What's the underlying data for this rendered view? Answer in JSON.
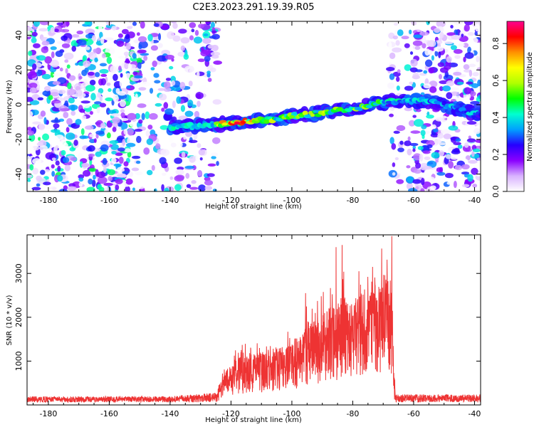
{
  "title": "C2E3.2023.291.19.39.R05",
  "chart_data": [
    {
      "type": "heatmap",
      "xlabel": "Height of straight line (km)",
      "ylabel": "Frequency (Hz)",
      "xlim": [
        -187,
        -38
      ],
      "ylim": [
        -50,
        48
      ],
      "xticks": [
        -180,
        -160,
        -140,
        -120,
        -100,
        -80,
        -60,
        -40
      ],
      "yticks": [
        -40,
        -20,
        0,
        20,
        40
      ],
      "gap_ranges_km": [
        [
          -124,
          -68
        ]
      ],
      "signal_track": {
        "description_points": [
          {
            "x": -140,
            "y": -13
          },
          {
            "x": -120,
            "y": -11
          },
          {
            "x": -100,
            "y": -7
          },
          {
            "x": -80,
            "y": -2
          },
          {
            "x": -68,
            "y": 2
          },
          {
            "x": -55,
            "y": 2
          },
          {
            "x": -40,
            "y": -5
          }
        ]
      },
      "colorbar": {
        "label": "Normalized spectral amplitude",
        "range": [
          0,
          0.92
        ],
        "ticks": [
          "0.0",
          "0.2",
          "0.4",
          "0.6",
          "0.8"
        ],
        "tick_values": [
          0.0,
          0.2,
          0.4,
          0.6,
          0.8
        ],
        "colors": [
          "#ffffff",
          "#d9b3ff",
          "#8a00ff",
          "#2600ff",
          "#00a0ff",
          "#00ffd0",
          "#00ff00",
          "#b0ff00",
          "#ffff00",
          "#ff9000",
          "#ff0000",
          "#ff0090"
        ]
      }
    },
    {
      "type": "line",
      "xlabel": "Height of straight line (km)",
      "ylabel": "SNR (10 * v/v)",
      "xlim": [
        -187,
        -38
      ],
      "ylim": [
        0,
        3880
      ],
      "xticks": [
        -180,
        -160,
        -140,
        -120,
        -100,
        -80,
        -60,
        -40
      ],
      "yticks": [
        1000,
        2000,
        3000
      ],
      "color": "#ee3333",
      "envelope": [
        {
          "x": -187,
          "y": 150
        },
        {
          "x": -140,
          "y": 150
        },
        {
          "x": -125,
          "y": 250
        },
        {
          "x": -122,
          "y": 700
        },
        {
          "x": -118,
          "y": 1000
        },
        {
          "x": -110,
          "y": 1100
        },
        {
          "x": -100,
          "y": 1300
        },
        {
          "x": -95,
          "y": 1700
        },
        {
          "x": -88,
          "y": 2000
        },
        {
          "x": -84,
          "y": 2300
        },
        {
          "x": -80,
          "y": 2200
        },
        {
          "x": -75,
          "y": 2400
        },
        {
          "x": -70,
          "y": 2700
        },
        {
          "x": -67.5,
          "y": 2900
        },
        {
          "x": -66,
          "y": 200
        },
        {
          "x": -38,
          "y": 200
        }
      ],
      "peaks": [
        {
          "x": -85.5,
          "y": 3600
        },
        {
          "x": -83.5,
          "y": 3650
        },
        {
          "x": -73.5,
          "y": 3150
        },
        {
          "x": -67.2,
          "y": 3850
        },
        {
          "x": -95.5,
          "y": 2550
        },
        {
          "x": -78,
          "y": 3050
        }
      ]
    }
  ]
}
